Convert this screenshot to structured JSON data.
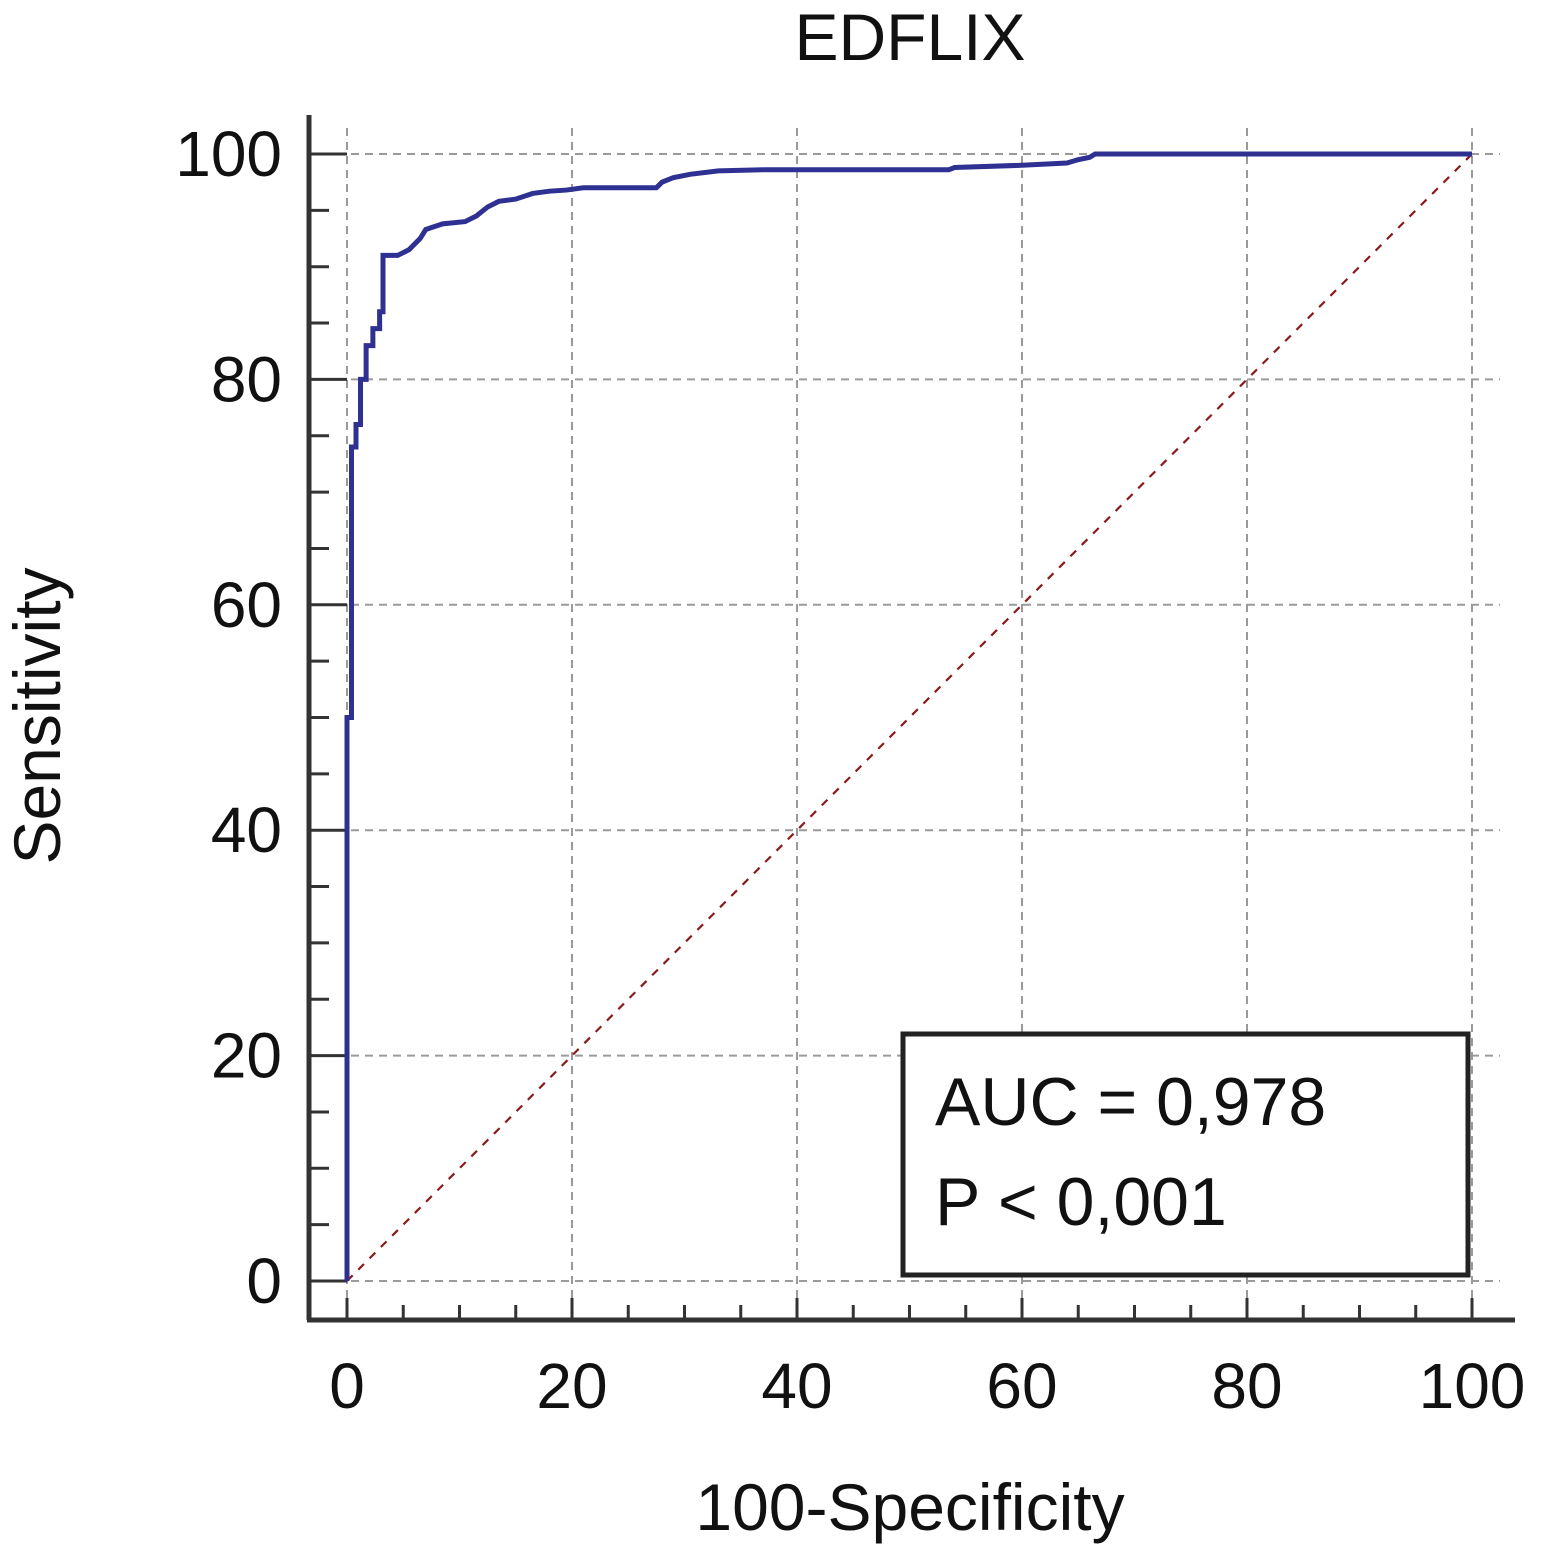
{
  "chart_data": {
    "type": "line",
    "title": "EDFLIX",
    "xlabel": "100-Specificity",
    "ylabel": "Sensitivity",
    "xlim": [
      0,
      100
    ],
    "ylim": [
      0,
      100
    ],
    "x_ticks": [
      "0",
      "20",
      "40",
      "60",
      "80",
      "100"
    ],
    "y_ticks": [
      "0",
      "20",
      "40",
      "60",
      "80",
      "100"
    ],
    "grid": true,
    "series": [
      {
        "color": "#2e3192",
        "points": [
          [
            0,
            0
          ],
          [
            0,
            50
          ],
          [
            0.4,
            50
          ],
          [
            0.4,
            74
          ],
          [
            0.8,
            74
          ],
          [
            0.8,
            76
          ],
          [
            1.2,
            76
          ],
          [
            1.2,
            80
          ],
          [
            1.7,
            80
          ],
          [
            1.7,
            83
          ],
          [
            2.3,
            83
          ],
          [
            2.3,
            84.5
          ],
          [
            2.9,
            84.5
          ],
          [
            2.9,
            86
          ],
          [
            3.2,
            86
          ],
          [
            3.2,
            91
          ],
          [
            4.5,
            91
          ],
          [
            5.5,
            91.5
          ],
          [
            6.5,
            92.5
          ],
          [
            7.0,
            93.3
          ],
          [
            8.5,
            93.8
          ],
          [
            10.5,
            94
          ],
          [
            11.5,
            94.5
          ],
          [
            12.5,
            95.3
          ],
          [
            13.5,
            95.8
          ],
          [
            15,
            96
          ],
          [
            16.5,
            96.5
          ],
          [
            18,
            96.7
          ],
          [
            19.5,
            96.8
          ],
          [
            21,
            97
          ],
          [
            24,
            97
          ],
          [
            27.5,
            97
          ],
          [
            28,
            97.5
          ],
          [
            29,
            97.9
          ],
          [
            30.5,
            98.2
          ],
          [
            33,
            98.5
          ],
          [
            37,
            98.6
          ],
          [
            45,
            98.6
          ],
          [
            53.5,
            98.6
          ],
          [
            54,
            98.8
          ],
          [
            60,
            99
          ],
          [
            64,
            99.2
          ],
          [
            65,
            99.5
          ],
          [
            66,
            99.7
          ],
          [
            66.5,
            100
          ],
          [
            100,
            100
          ]
        ]
      },
      {
        "color": "#8b1a1a",
        "style": "dashed",
        "points": [
          [
            0,
            0
          ],
          [
            100,
            100
          ]
        ]
      }
    ],
    "annotations": {
      "auc": "AUC = 0,978",
      "p": "P < 0,001"
    }
  }
}
